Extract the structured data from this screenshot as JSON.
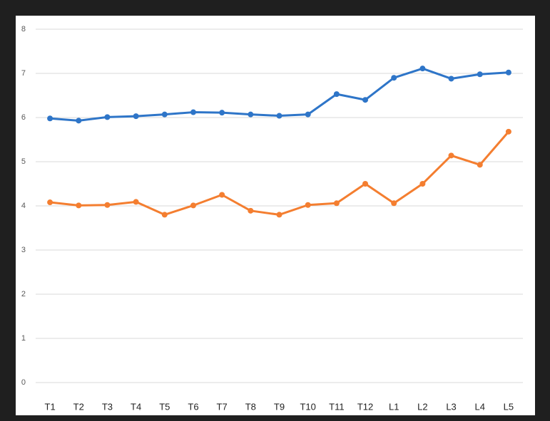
{
  "chart_data": {
    "type": "line",
    "categories": [
      "T1",
      "T2",
      "T3",
      "T4",
      "T5",
      "T6",
      "T7",
      "T8",
      "T9",
      "T10",
      "T11",
      "T12",
      "L1",
      "L2",
      "L3",
      "L4",
      "L5"
    ],
    "series": [
      {
        "color": "#2e75c8",
        "values": [
          5.98,
          5.93,
          6.01,
          6.03,
          6.07,
          6.12,
          6.11,
          6.07,
          6.04,
          6.07,
          6.53,
          6.4,
          6.9,
          7.11,
          6.88,
          6.98,
          7.02
        ]
      },
      {
        "color": "#f47e30",
        "values": [
          4.08,
          4.01,
          4.02,
          4.09,
          3.8,
          4.01,
          4.25,
          3.89,
          3.8,
          4.02,
          4.06,
          4.5,
          4.06,
          4.5,
          5.14,
          4.93,
          5.68
        ]
      }
    ],
    "ylim": [
      0,
      8
    ],
    "yticks": [
      0,
      1,
      2,
      3,
      4,
      5,
      6,
      7,
      8
    ],
    "grid": true
  }
}
